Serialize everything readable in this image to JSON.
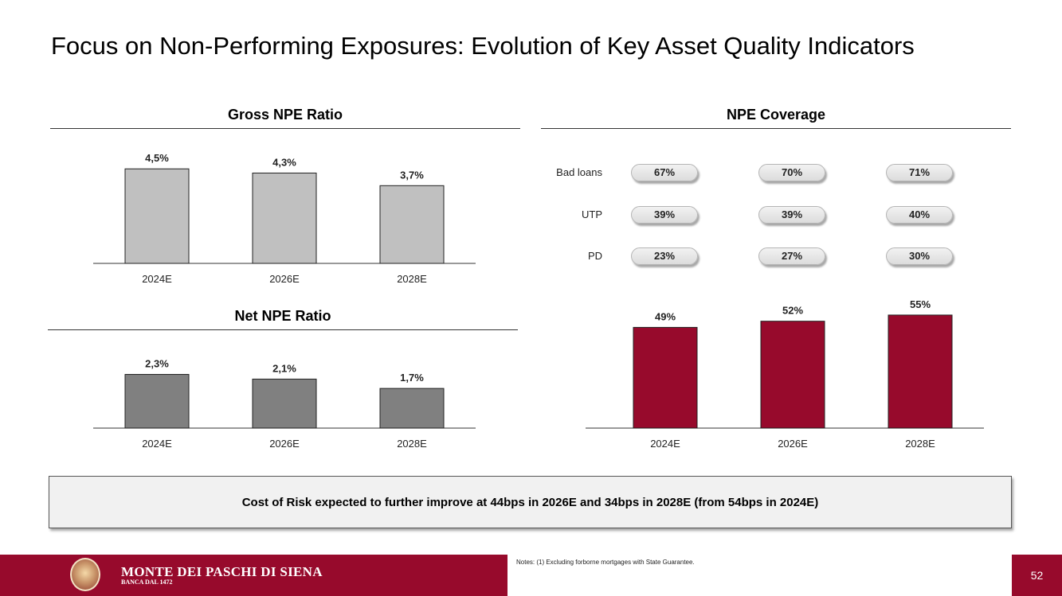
{
  "page_title": "Focus on Non-Performing Exposures: Evolution of Key Asset Quality Indicators",
  "colors": {
    "gross_bar": "#c0c0c0",
    "net_bar": "#808080",
    "coverage_bar": "#970a2c",
    "brand": "#970a2c"
  },
  "chart_data": [
    {
      "type": "bar",
      "title": "Gross NPE Ratio",
      "categories": [
        "2024E",
        "2026E",
        "2028E"
      ],
      "values": [
        4.5,
        4.3,
        3.7
      ],
      "value_labels": [
        "4,5%",
        "4,3%",
        "3,7%"
      ],
      "xlabel": "",
      "ylabel": "",
      "ylim": [
        0,
        5
      ]
    },
    {
      "type": "bar",
      "title": "Net NPE Ratio",
      "categories": [
        "2024E",
        "2026E",
        "2028E"
      ],
      "values": [
        2.3,
        2.1,
        1.7
      ],
      "value_labels": [
        "2,3%",
        "2,1%",
        "1,7%"
      ],
      "xlabel": "",
      "ylabel": "",
      "ylim": [
        0,
        3
      ]
    },
    {
      "type": "bar",
      "title": "NPE Coverage",
      "categories": [
        "2024E",
        "2026E",
        "2028E"
      ],
      "values": [
        49,
        52,
        55
      ],
      "value_labels": [
        "49%",
        "52%",
        "55%"
      ],
      "xlabel": "",
      "ylabel": "",
      "ylim": [
        0,
        60
      ],
      "breakdown": [
        {
          "name": "Bad loans",
          "values": [
            "67%",
            "70%",
            "71%"
          ]
        },
        {
          "name": "UTP",
          "values": [
            "39%",
            "39%",
            "40%"
          ]
        },
        {
          "name": "PD",
          "values": [
            "23%",
            "27%",
            "30%"
          ]
        }
      ]
    }
  ],
  "callout": "Cost of Risk expected to further improve at 44bps in 2026E and 34bps in 2028E (from 54bps in 2024E)",
  "footer": {
    "brand_name": "MONTE DEI PASCHI DI SIENA",
    "brand_sub": "BANCA DAL 1472",
    "notes": "Notes: (1) Excluding forborne mortgages with State Guarantee.",
    "page_number": "52"
  }
}
